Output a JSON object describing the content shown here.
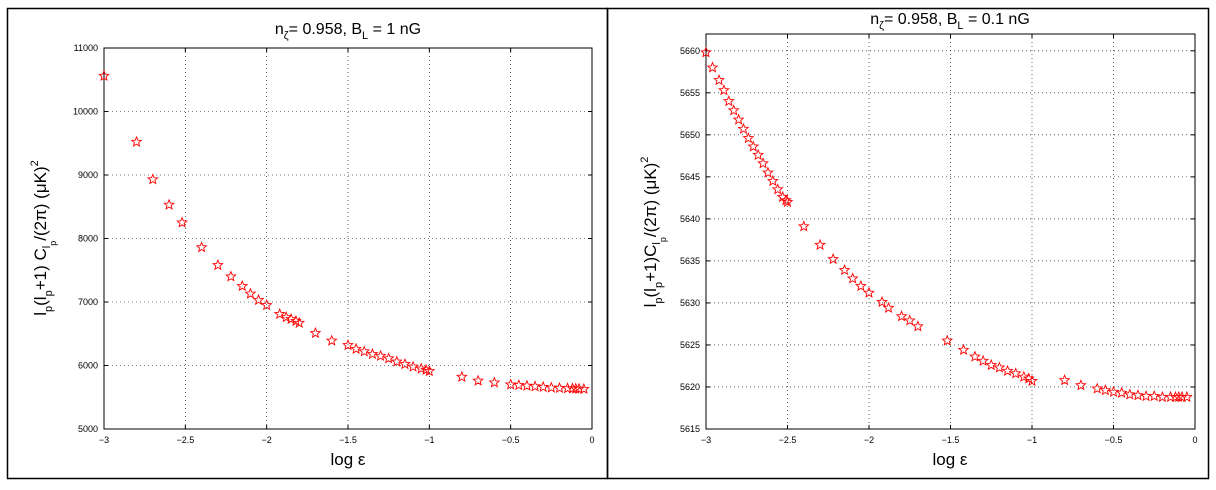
{
  "chart_data": [
    {
      "type": "scatter",
      "title": "n_ζ= 0.958, B_L = 1 nG",
      "title_parts": {
        "main": "n",
        "sub1": "ζ",
        "mid": "= 0.958, B",
        "sub2": "L",
        "tail": " = 1 nG"
      },
      "xlabel": "log ε",
      "ylabel_parts": {
        "p1": "l",
        "s1": "p",
        "p2": "(l",
        "s2": "p",
        "p3": "+1) C",
        "s3": "l",
        "s3b": "p",
        "p4": "/(2π) (μK)",
        "sup": "2"
      },
      "xlim": [
        -3,
        0
      ],
      "ylim": [
        5000,
        11000
      ],
      "xticks": [
        -3,
        -2.5,
        -2,
        -1.5,
        -1,
        -0.5,
        0
      ],
      "xtick_labels": [
        "−3",
        "−2.5",
        "−2",
        "−1.5",
        "−1",
        "−0.5",
        "0"
      ],
      "yticks": [
        5000,
        6000,
        7000,
        8000,
        9000,
        10000,
        11000
      ],
      "ytick_labels": [
        "5000",
        "6000",
        "7000",
        "8000",
        "9000",
        "10000",
        "11000"
      ],
      "grid": true,
      "marker": "star",
      "marker_color": "#ff0000",
      "x": [
        -3.0,
        -2.8,
        -2.7,
        -2.6,
        -2.52,
        -2.4,
        -2.3,
        -2.22,
        -2.15,
        -2.1,
        -2.05,
        -2.0,
        -1.92,
        -1.88,
        -1.85,
        -1.82,
        -1.8,
        -1.7,
        -1.6,
        -1.5,
        -1.45,
        -1.4,
        -1.35,
        -1.3,
        -1.25,
        -1.2,
        -1.15,
        -1.1,
        -1.05,
        -1.02,
        -1.0,
        -0.8,
        -0.7,
        -0.6,
        -0.5,
        -0.45,
        -0.4,
        -0.35,
        -0.3,
        -0.25,
        -0.2,
        -0.15,
        -0.12,
        -0.1,
        -0.08,
        -0.05
      ],
      "y": [
        10560,
        9520,
        8930,
        8530,
        8250,
        7860,
        7580,
        7400,
        7250,
        7130,
        7030,
        6950,
        6810,
        6760,
        6730,
        6700,
        6670,
        6510,
        6390,
        6320,
        6260,
        6220,
        6180,
        6150,
        6110,
        6060,
        6020,
        5980,
        5950,
        5930,
        5910,
        5820,
        5760,
        5730,
        5700,
        5690,
        5680,
        5670,
        5660,
        5650,
        5645,
        5640,
        5638,
        5635,
        5632,
        5630
      ]
    },
    {
      "type": "scatter",
      "title": "n_ζ= 0.958, B_L = 0.1 nG",
      "title_parts": {
        "main": "n",
        "sub1": "ζ",
        "mid": "= 0.958, B",
        "sub2": "L",
        "tail": " = 0.1 nG"
      },
      "xlabel": "log ε",
      "ylabel_parts": {
        "p1": "l",
        "s1": "p",
        "p2": "(l",
        "s2": "p",
        "p3": "+1)C",
        "s3": "l",
        "s3b": "p",
        "p4": "/(2π) (μK)",
        "sup": "2"
      },
      "xlim": [
        -3,
        0
      ],
      "ylim": [
        5615,
        5662
      ],
      "xticks": [
        -3,
        -2.5,
        -2,
        -1.5,
        -1,
        -0.5,
        0
      ],
      "xtick_labels": [
        "−3",
        "−2.5",
        "−2",
        "−1.5",
        "−1",
        "−0.5",
        "0"
      ],
      "yticks": [
        5615,
        5620,
        5625,
        5630,
        5635,
        5640,
        5645,
        5650,
        5655,
        5660
      ],
      "ytick_labels": [
        "5615",
        "5620",
        "5625",
        "5630",
        "5635",
        "5640",
        "5645",
        "5650",
        "5655",
        "5660"
      ],
      "grid": true,
      "marker": "star",
      "marker_color": "#ff0000",
      "x": [
        -3.0,
        -2.96,
        -2.92,
        -2.89,
        -2.86,
        -2.83,
        -2.8,
        -2.77,
        -2.74,
        -2.71,
        -2.68,
        -2.65,
        -2.62,
        -2.59,
        -2.56,
        -2.53,
        -2.51,
        -2.5,
        -2.4,
        -2.3,
        -2.22,
        -2.15,
        -2.1,
        -2.05,
        -2.0,
        -1.92,
        -1.88,
        -1.8,
        -1.75,
        -1.7,
        -1.52,
        -1.42,
        -1.35,
        -1.3,
        -1.25,
        -1.2,
        -1.15,
        -1.1,
        -1.05,
        -1.02,
        -1.0,
        -0.8,
        -0.7,
        -0.6,
        -0.55,
        -0.5,
        -0.45,
        -0.4,
        -0.35,
        -0.3,
        -0.25,
        -0.2,
        -0.15,
        -0.12,
        -0.1,
        -0.08,
        -0.05
      ],
      "y": [
        5659.8,
        5658.0,
        5656.5,
        5655.3,
        5654.0,
        5652.9,
        5651.8,
        5650.7,
        5649.6,
        5648.6,
        5647.6,
        5646.6,
        5645.5,
        5644.5,
        5643.5,
        5642.6,
        5642.2,
        5642.0,
        5639.1,
        5636.9,
        5635.2,
        5633.9,
        5632.9,
        5632.0,
        5631.2,
        5630.1,
        5629.4,
        5628.4,
        5627.9,
        5627.2,
        5625.5,
        5624.4,
        5623.6,
        5623.1,
        5622.6,
        5622.3,
        5621.9,
        5621.6,
        5621.2,
        5621.0,
        5620.7,
        5620.8,
        5620.2,
        5619.8,
        5619.6,
        5619.4,
        5619.3,
        5619.1,
        5619.0,
        5618.9,
        5618.9,
        5618.8,
        5618.8,
        5618.8,
        5618.8,
        5618.8,
        5618.8
      ]
    }
  ]
}
